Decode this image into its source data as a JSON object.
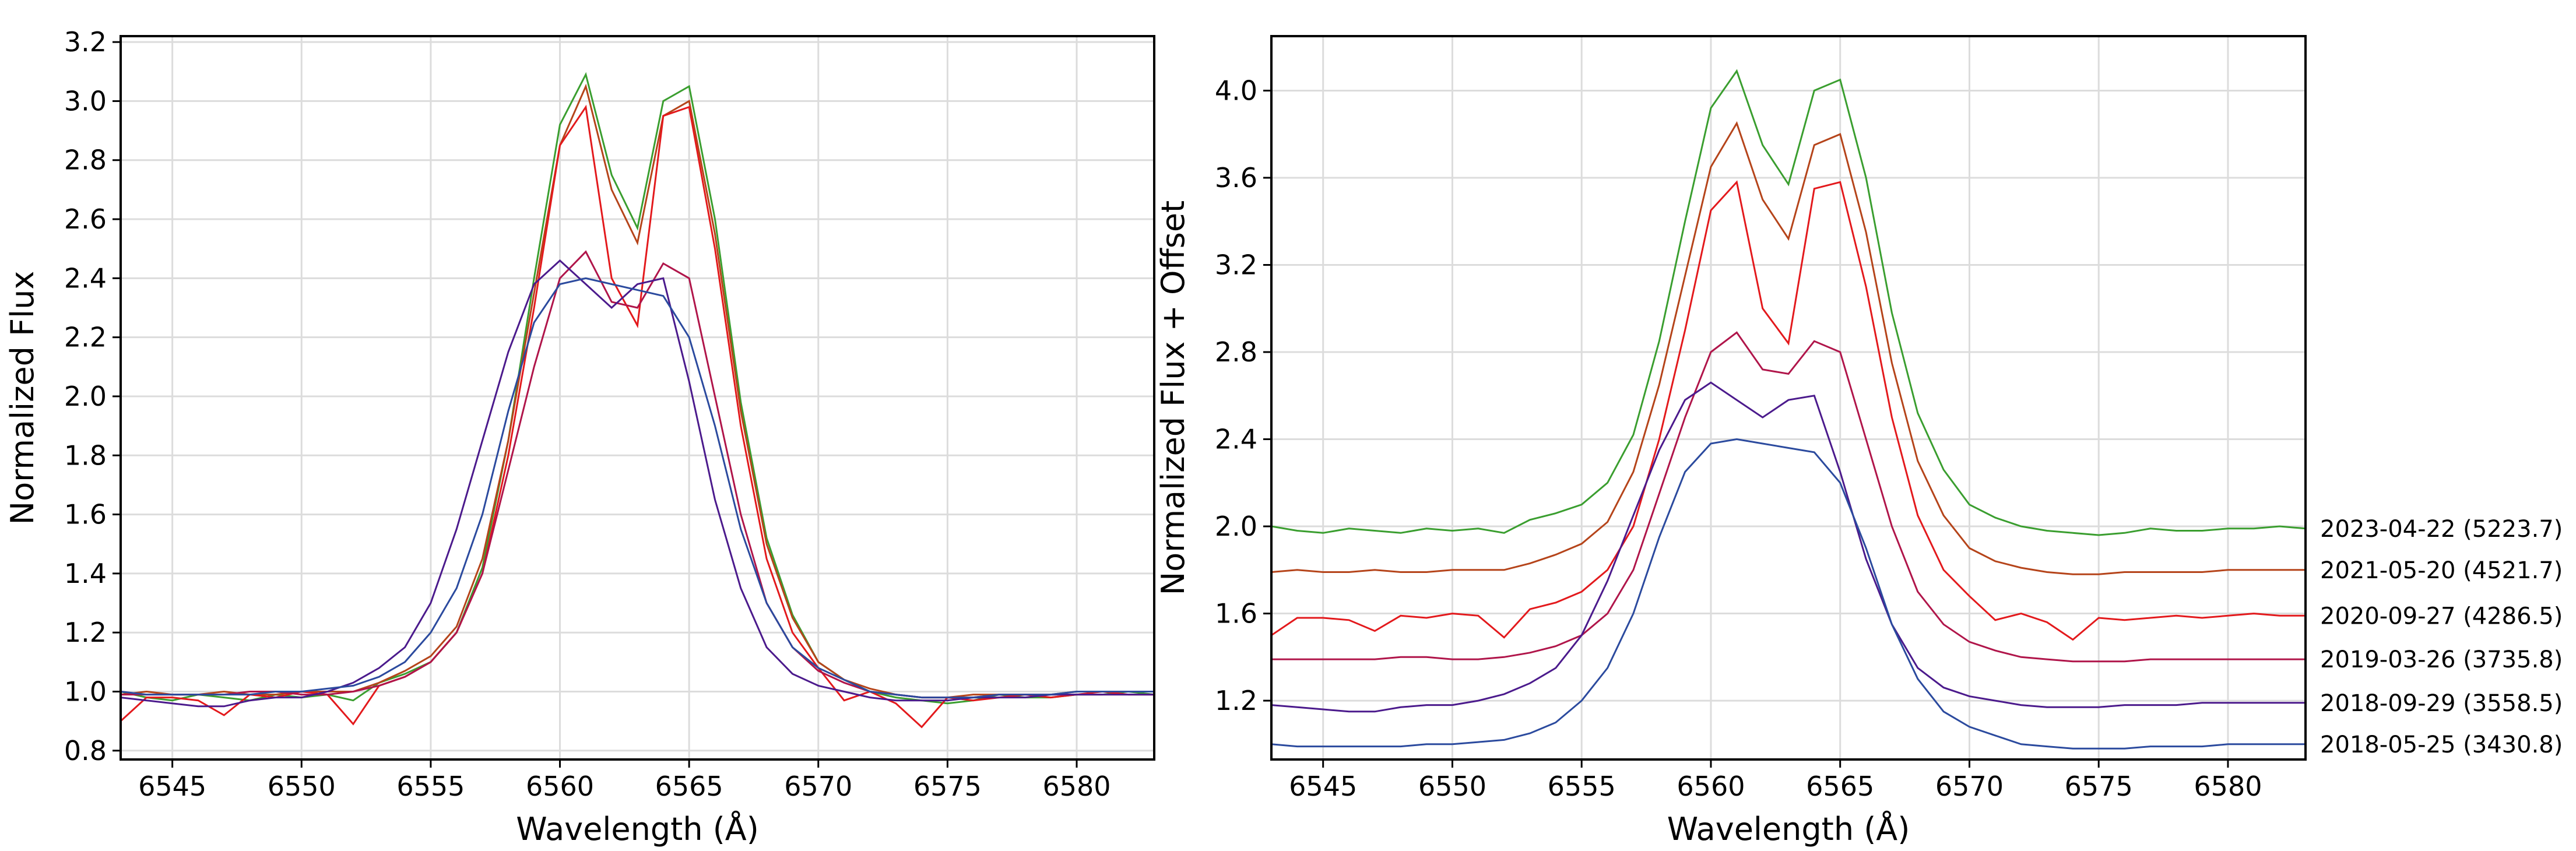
{
  "chart_data": [
    {
      "type": "line",
      "xlabel": "Wavelength (Å)",
      "ylabel": "Normalized Flux",
      "x": [
        6543,
        6544,
        6545,
        6546,
        6547,
        6548,
        6549,
        6550,
        6551,
        6552,
        6553,
        6554,
        6555,
        6556,
        6557,
        6558,
        6559,
        6560,
        6561,
        6562,
        6563,
        6564,
        6565,
        6566,
        6567,
        6568,
        6569,
        6570,
        6571,
        6572,
        6573,
        6574,
        6575,
        6576,
        6577,
        6578,
        6579,
        6580,
        6581,
        6582,
        6583
      ],
      "xlim": [
        6543,
        6583
      ],
      "xticks": [
        6545,
        6550,
        6555,
        6560,
        6565,
        6570,
        6575,
        6580
      ],
      "ylim": [
        0.77,
        3.22
      ],
      "yticks": [
        0.8,
        {
          "value": 1,
          "label": "1.0"
        },
        1.2,
        1.4,
        1.6,
        1.8,
        {
          "value": 2,
          "label": "2.0"
        },
        2.2,
        2.4,
        2.6,
        2.8,
        {
          "value": 3,
          "label": "3.0"
        },
        3.2
      ],
      "grid": true,
      "series": [
        {
          "color": "#3a9e2f",
          "values": [
            1.0,
            0.98,
            0.97,
            0.99,
            0.98,
            0.97,
            0.99,
            0.98,
            0.99,
            0.97,
            1.03,
            1.06,
            1.1,
            1.2,
            1.42,
            1.85,
            2.4,
            2.92,
            3.09,
            2.75,
            2.57,
            3.0,
            3.05,
            2.6,
            1.98,
            1.52,
            1.26,
            1.1,
            1.04,
            1.0,
            0.98,
            0.97,
            0.96,
            0.97,
            0.99,
            0.98,
            0.98,
            0.99,
            0.99,
            1.0,
            0.99
          ]
        },
        {
          "color": "#b5441a",
          "values": [
            0.99,
            1.0,
            0.99,
            0.99,
            1.0,
            0.99,
            0.99,
            1.0,
            1.0,
            1.0,
            1.03,
            1.07,
            1.12,
            1.22,
            1.45,
            1.85,
            2.35,
            2.85,
            3.05,
            2.7,
            2.52,
            2.95,
            3.0,
            2.55,
            1.95,
            1.5,
            1.25,
            1.1,
            1.04,
            1.01,
            0.99,
            0.98,
            0.98,
            0.99,
            0.99,
            0.99,
            0.99,
            1.0,
            1.0,
            1.0,
            1.0
          ]
        },
        {
          "color": "#e3191c",
          "values": [
            0.9,
            0.98,
            0.98,
            0.97,
            0.92,
            0.99,
            0.98,
            1.0,
            0.99,
            0.89,
            1.02,
            1.05,
            1.1,
            1.2,
            1.4,
            1.8,
            2.3,
            2.85,
            2.98,
            2.4,
            2.24,
            2.95,
            2.98,
            2.5,
            1.9,
            1.45,
            1.2,
            1.08,
            0.97,
            1.0,
            0.96,
            0.88,
            0.98,
            0.97,
            0.98,
            0.99,
            0.98,
            0.99,
            1.0,
            0.99,
            0.99
          ]
        },
        {
          "color": "#b0154a",
          "values": [
            0.99,
            0.99,
            0.99,
            0.99,
            0.99,
            1.0,
            1.0,
            0.99,
            0.99,
            1.0,
            1.02,
            1.05,
            1.1,
            1.2,
            1.4,
            1.75,
            2.1,
            2.4,
            2.49,
            2.32,
            2.3,
            2.45,
            2.4,
            2.0,
            1.6,
            1.3,
            1.15,
            1.07,
            1.03,
            1.0,
            0.99,
            0.98,
            0.98,
            0.98,
            0.99,
            0.99,
            0.99,
            0.99,
            0.99,
            0.99,
            0.99
          ]
        },
        {
          "color": "#4b1a8c",
          "values": [
            0.98,
            0.97,
            0.96,
            0.95,
            0.95,
            0.97,
            0.98,
            0.98,
            1.0,
            1.03,
            1.08,
            1.15,
            1.3,
            1.55,
            1.85,
            2.15,
            2.38,
            2.46,
            2.38,
            2.3,
            2.38,
            2.4,
            2.05,
            1.65,
            1.35,
            1.15,
            1.06,
            1.02,
            1.0,
            0.98,
            0.97,
            0.97,
            0.97,
            0.98,
            0.98,
            0.98,
            0.99,
            0.99,
            0.99,
            0.99,
            0.99
          ]
        },
        {
          "color": "#2b4a9e",
          "values": [
            1.0,
            0.99,
            0.99,
            0.99,
            0.99,
            0.99,
            1.0,
            1.0,
            1.01,
            1.02,
            1.05,
            1.1,
            1.2,
            1.35,
            1.6,
            1.95,
            2.25,
            2.38,
            2.4,
            2.38,
            2.36,
            2.34,
            2.2,
            1.9,
            1.55,
            1.3,
            1.15,
            1.08,
            1.04,
            1.0,
            0.99,
            0.98,
            0.98,
            0.98,
            0.99,
            0.99,
            0.99,
            1.0,
            1.0,
            1.0,
            1.0
          ]
        }
      ]
    },
    {
      "type": "line",
      "xlabel": "Wavelength (Å)",
      "ylabel": "Normalized Flux + Offset",
      "x": [
        6543,
        6544,
        6545,
        6546,
        6547,
        6548,
        6549,
        6550,
        6551,
        6552,
        6553,
        6554,
        6555,
        6556,
        6557,
        6558,
        6559,
        6560,
        6561,
        6562,
        6563,
        6564,
        6565,
        6566,
        6567,
        6568,
        6569,
        6570,
        6571,
        6572,
        6573,
        6574,
        6575,
        6576,
        6577,
        6578,
        6579,
        6580,
        6581,
        6582,
        6583
      ],
      "xlim": [
        6543,
        6583
      ],
      "xticks": [
        6545,
        6550,
        6555,
        6560,
        6565,
        6570,
        6575,
        6580
      ],
      "ylim": [
        0.93,
        4.25
      ],
      "yticks": [
        1.2,
        1.6,
        {
          "value": 2,
          "label": "2.0"
        },
        2.4,
        2.8,
        3.2,
        3.6,
        {
          "value": 4,
          "label": "4.0"
        }
      ],
      "grid": true,
      "legend": "line-end",
      "series": [
        {
          "name": "2023-04-22 (5223.7)",
          "color": "#3a9e2f",
          "values": [
            2.0,
            1.98,
            1.97,
            1.99,
            1.98,
            1.97,
            1.99,
            1.98,
            1.99,
            1.97,
            2.03,
            2.06,
            2.1,
            2.2,
            2.42,
            2.85,
            3.4,
            3.92,
            4.09,
            3.75,
            3.57,
            4.0,
            4.05,
            3.6,
            2.98,
            2.52,
            2.26,
            2.1,
            2.04,
            2.0,
            1.98,
            1.97,
            1.96,
            1.97,
            1.99,
            1.98,
            1.98,
            1.99,
            1.99,
            2.0,
            1.99
          ]
        },
        {
          "name": "2021-05-20 (4521.7)",
          "color": "#b5441a",
          "values": [
            1.79,
            1.8,
            1.79,
            1.79,
            1.8,
            1.79,
            1.79,
            1.8,
            1.8,
            1.8,
            1.83,
            1.87,
            1.92,
            2.02,
            2.25,
            2.65,
            3.15,
            3.65,
            3.85,
            3.5,
            3.32,
            3.75,
            3.8,
            3.35,
            2.75,
            2.3,
            2.05,
            1.9,
            1.84,
            1.81,
            1.79,
            1.78,
            1.78,
            1.79,
            1.79,
            1.79,
            1.79,
            1.8,
            1.8,
            1.8,
            1.8
          ]
        },
        {
          "name": "2020-09-27 (4286.5)",
          "color": "#e3191c",
          "values": [
            1.5,
            1.58,
            1.58,
            1.57,
            1.52,
            1.59,
            1.58,
            1.6,
            1.59,
            1.49,
            1.62,
            1.65,
            1.7,
            1.8,
            2.0,
            2.4,
            2.9,
            3.45,
            3.58,
            3.0,
            2.84,
            3.55,
            3.58,
            3.1,
            2.5,
            2.05,
            1.8,
            1.68,
            1.57,
            1.6,
            1.56,
            1.48,
            1.58,
            1.57,
            1.58,
            1.59,
            1.58,
            1.59,
            1.6,
            1.59,
            1.59
          ]
        },
        {
          "name": "2019-03-26 (3735.8)",
          "color": "#b0154a",
          "values": [
            1.39,
            1.39,
            1.39,
            1.39,
            1.39,
            1.4,
            1.4,
            1.39,
            1.39,
            1.4,
            1.42,
            1.45,
            1.5,
            1.6,
            1.8,
            2.15,
            2.5,
            2.8,
            2.89,
            2.72,
            2.7,
            2.85,
            2.8,
            2.4,
            2.0,
            1.7,
            1.55,
            1.47,
            1.43,
            1.4,
            1.39,
            1.38,
            1.38,
            1.38,
            1.39,
            1.39,
            1.39,
            1.39,
            1.39,
            1.39,
            1.39
          ]
        },
        {
          "name": "2018-09-29 (3558.5)",
          "color": "#4b1a8c",
          "values": [
            1.18,
            1.17,
            1.16,
            1.15,
            1.15,
            1.17,
            1.18,
            1.18,
            1.2,
            1.23,
            1.28,
            1.35,
            1.5,
            1.75,
            2.05,
            2.35,
            2.58,
            2.66,
            2.58,
            2.5,
            2.58,
            2.6,
            2.25,
            1.85,
            1.55,
            1.35,
            1.26,
            1.22,
            1.2,
            1.18,
            1.17,
            1.17,
            1.17,
            1.18,
            1.18,
            1.18,
            1.19,
            1.19,
            1.19,
            1.19,
            1.19
          ]
        },
        {
          "name": "2018-05-25 (3430.8)",
          "color": "#2b4a9e",
          "values": [
            1.0,
            0.99,
            0.99,
            0.99,
            0.99,
            0.99,
            1.0,
            1.0,
            1.01,
            1.02,
            1.05,
            1.1,
            1.2,
            1.35,
            1.6,
            1.95,
            2.25,
            2.38,
            2.4,
            2.38,
            2.36,
            2.34,
            2.2,
            1.9,
            1.55,
            1.3,
            1.15,
            1.08,
            1.04,
            1.0,
            0.99,
            0.98,
            0.98,
            0.98,
            0.99,
            0.99,
            0.99,
            1.0,
            1.0,
            1.0,
            1.0
          ]
        }
      ]
    }
  ]
}
